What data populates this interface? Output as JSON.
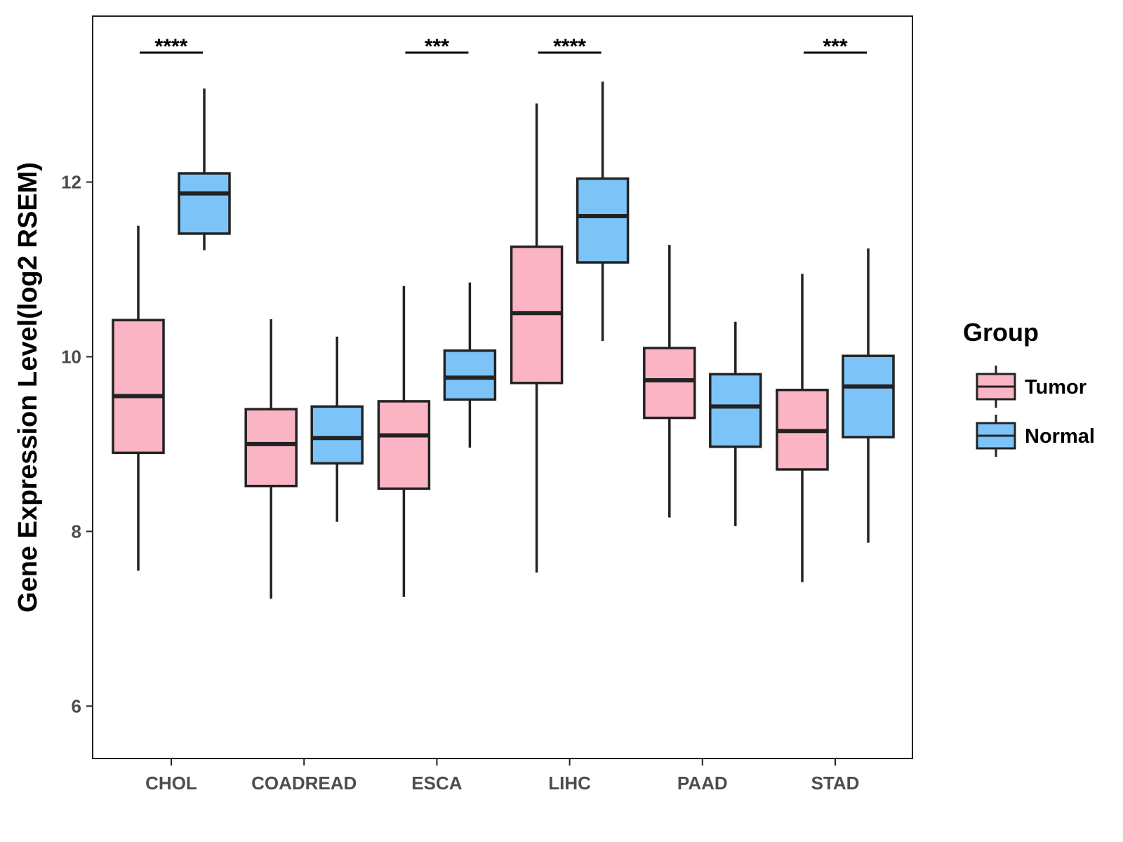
{
  "chart_data": {
    "type": "boxplot",
    "title": "",
    "xlabel": "",
    "ylabel": "Gene Expression Level(log2 RSEM)",
    "ylim": [
      5.4,
      13.9
    ],
    "yticks": [
      6,
      8,
      10,
      12
    ],
    "categories": [
      "CHOL",
      "COADREAD",
      "ESCA",
      "LIHC",
      "PAAD",
      "STAD"
    ],
    "legend": {
      "title": "Group",
      "position": "right",
      "entries": [
        "Tumor",
        "Normal"
      ]
    },
    "colors": {
      "Tumor": "#fbb4c4",
      "Normal": "#7cc4f8",
      "outline": "#222222"
    },
    "series": [
      {
        "name": "Tumor",
        "boxes": [
          {
            "category": "CHOL",
            "min": 7.55,
            "q1": 8.9,
            "median": 9.55,
            "q3": 10.42,
            "max": 11.5
          },
          {
            "category": "COADREAD",
            "min": 7.23,
            "q1": 8.52,
            "median": 9.0,
            "q3": 9.4,
            "max": 10.43
          },
          {
            "category": "ESCA",
            "min": 7.25,
            "q1": 8.49,
            "median": 9.1,
            "q3": 9.49,
            "max": 10.81
          },
          {
            "category": "LIHC",
            "min": 7.53,
            "q1": 9.7,
            "median": 10.5,
            "q3": 11.26,
            "max": 12.9
          },
          {
            "category": "PAAD",
            "min": 8.16,
            "q1": 9.3,
            "median": 9.73,
            "q3": 10.1,
            "max": 11.28
          },
          {
            "category": "STAD",
            "min": 7.42,
            "q1": 8.71,
            "median": 9.15,
            "q3": 9.62,
            "max": 10.95
          }
        ]
      },
      {
        "name": "Normal",
        "boxes": [
          {
            "category": "CHOL",
            "min": 11.22,
            "q1": 11.41,
            "median": 11.87,
            "q3": 12.1,
            "max": 13.07
          },
          {
            "category": "COADREAD",
            "min": 8.11,
            "q1": 8.78,
            "median": 9.07,
            "q3": 9.43,
            "max": 10.23
          },
          {
            "category": "ESCA",
            "min": 8.96,
            "q1": 9.51,
            "median": 9.76,
            "q3": 10.07,
            "max": 10.85
          },
          {
            "category": "LIHC",
            "min": 10.18,
            "q1": 11.08,
            "median": 11.61,
            "q3": 12.04,
            "max": 13.15
          },
          {
            "category": "PAAD",
            "min": 8.06,
            "q1": 8.97,
            "median": 9.43,
            "q3": 9.8,
            "max": 10.4
          },
          {
            "category": "STAD",
            "min": 7.87,
            "q1": 9.08,
            "median": 9.66,
            "q3": 10.01,
            "max": 11.24
          }
        ]
      }
    ],
    "significance": [
      {
        "category": "CHOL",
        "label": "****"
      },
      {
        "category": "ESCA",
        "label": "***"
      },
      {
        "category": "LIHC",
        "label": "****"
      },
      {
        "category": "STAD",
        "label": "***"
      }
    ]
  }
}
